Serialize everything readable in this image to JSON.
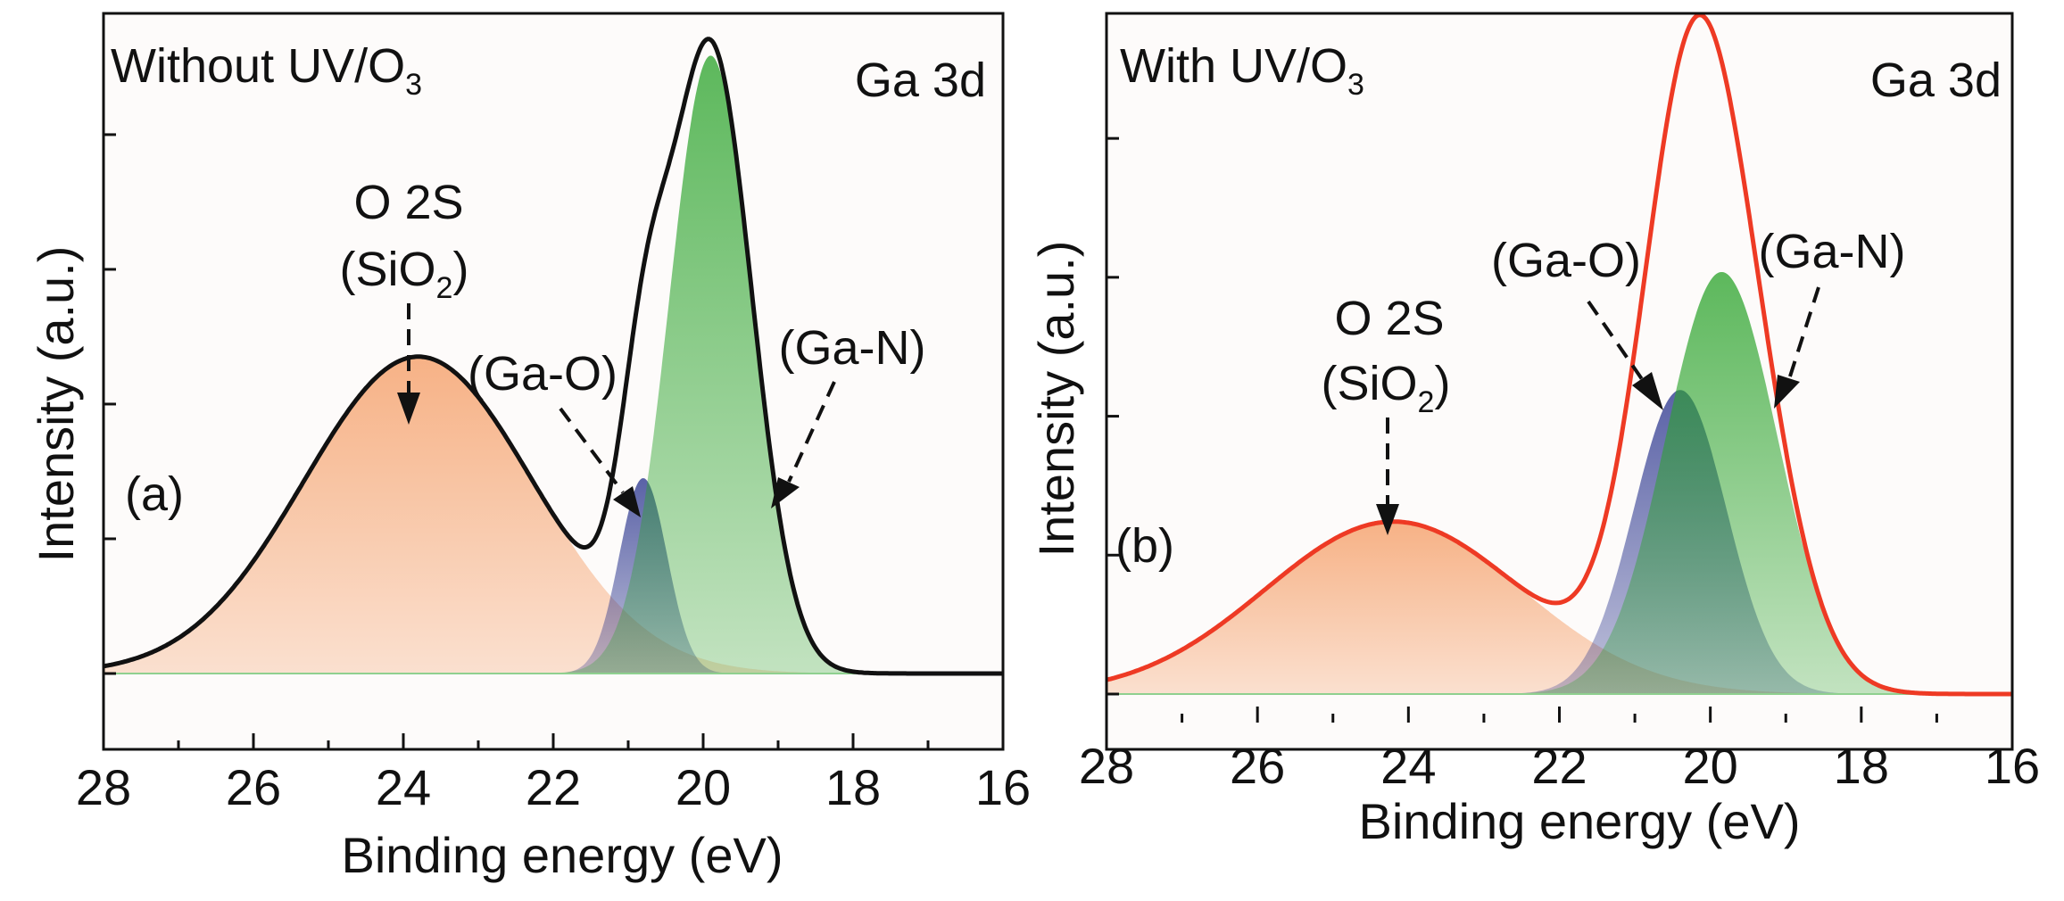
{
  "figure": {
    "background": "#ffffff",
    "plot_background": "#fdfbfa"
  },
  "chart_data": [
    {
      "type": "area",
      "panel_label": "(a)",
      "condition": "Without UV/O",
      "condition_sub": "3",
      "region": "Ga 3d",
      "xlabel": "Binding energy (eV)",
      "ylabel": "Intensity (a.u.)",
      "xlim": [
        28,
        16
      ],
      "xticks": [
        "28",
        "26",
        "24",
        "22",
        "20",
        "18",
        "16"
      ],
      "ylim": [
        -0.1,
        1.25
      ],
      "baseline": 0.0,
      "envelope_color": "#111111",
      "components": [
        {
          "name": "O 2S (SiO2)",
          "center": 23.8,
          "fwhm": 3.6,
          "amplitude": 0.6,
          "color": "#f5a06a"
        },
        {
          "name": "Ga-O",
          "center": 20.8,
          "fwhm": 0.75,
          "amplitude": 0.37,
          "color": "#26318c"
        },
        {
          "name": "Ga-N",
          "center": 19.9,
          "fwhm": 1.3,
          "amplitude": 1.17,
          "color": "#2aa32a"
        }
      ],
      "annotations": [
        {
          "text": "O 2S",
          "target": "O 2S (SiO2)"
        },
        {
          "text": "(SiO",
          "sub": "2",
          "tail": ")",
          "target": "O 2S (SiO2)"
        },
        {
          "text": "(Ga-O)",
          "target": "Ga-O"
        },
        {
          "text": "(Ga-N)",
          "target": "Ga-N"
        }
      ]
    },
    {
      "type": "area",
      "panel_label": "(b)",
      "condition": "With UV/O",
      "condition_sub": "3",
      "region": "Ga 3d",
      "xlabel": "Binding energy (eV)",
      "ylabel": "Intensity (a.u.)",
      "xlim": [
        28,
        16
      ],
      "xticks": [
        "28",
        "26",
        "24",
        "22",
        "20",
        "18",
        "16"
      ],
      "ylim": [
        -0.1,
        1.5
      ],
      "baseline": 0.0,
      "envelope_color": "#ee3a24",
      "components": [
        {
          "name": "O 2S (SiO2)",
          "center": 24.2,
          "fwhm": 4.0,
          "amplitude": 0.38,
          "color": "#f5a06a"
        },
        {
          "name": "Ga-O",
          "center": 20.4,
          "fwhm": 1.45,
          "amplitude": 0.67,
          "color": "#26318c"
        },
        {
          "name": "Ga-N",
          "center": 19.85,
          "fwhm": 1.75,
          "amplitude": 0.93,
          "color": "#2aa32a"
        }
      ],
      "annotations": [
        {
          "text": "O 2S",
          "target": "O 2S (SiO2)"
        },
        {
          "text": "(SiO",
          "sub": "2",
          "tail": ")",
          "target": "O 2S (SiO2)"
        },
        {
          "text": "(Ga-O)",
          "target": "Ga-O"
        },
        {
          "text": "(Ga-N)",
          "target": "Ga-N"
        }
      ]
    }
  ]
}
